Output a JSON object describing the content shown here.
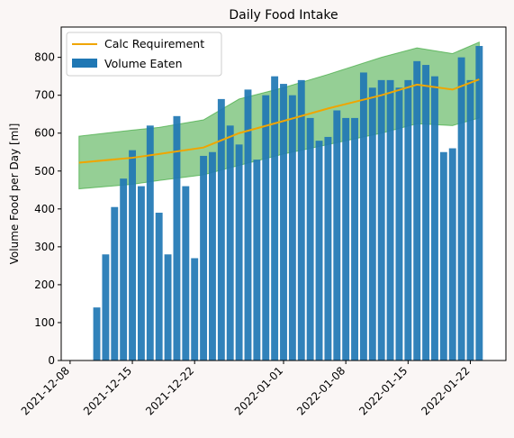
{
  "chart_data": {
    "type": "bar",
    "title": "Daily Food Intake",
    "xlabel": "",
    "ylabel": "Volume Food per Day [ml]",
    "ylim": [
      0,
      880
    ],
    "xlim": [
      "2021-12-07",
      "2022-01-26"
    ],
    "yticks": [
      0,
      100,
      200,
      300,
      400,
      500,
      600,
      700,
      800
    ],
    "xticks": [
      "2021-12-08",
      "2021-12-15",
      "2021-12-22",
      "2022-01-01",
      "2022-01-08",
      "2022-01-15",
      "2022-01-22"
    ],
    "grid": false,
    "legend": "top-left",
    "colors": {
      "bars": "#1f77b4",
      "line": "#f0a500",
      "band": "#2ca02c"
    },
    "bars": {
      "name": "Volume Eaten",
      "dates": [
        "2021-12-11",
        "2021-12-12",
        "2021-12-13",
        "2021-12-14",
        "2021-12-15",
        "2021-12-16",
        "2021-12-17",
        "2021-12-18",
        "2021-12-19",
        "2021-12-20",
        "2021-12-21",
        "2021-12-22",
        "2021-12-23",
        "2021-12-24",
        "2021-12-25",
        "2021-12-26",
        "2021-12-27",
        "2021-12-28",
        "2021-12-29",
        "2021-12-30",
        "2021-12-31",
        "2022-01-01",
        "2022-01-02",
        "2022-01-03",
        "2022-01-04",
        "2022-01-05",
        "2022-01-06",
        "2022-01-07",
        "2022-01-08",
        "2022-01-09",
        "2022-01-10",
        "2022-01-11",
        "2022-01-12",
        "2022-01-13",
        "2022-01-14",
        "2022-01-15",
        "2022-01-16",
        "2022-01-17",
        "2022-01-18",
        "2022-01-19",
        "2022-01-20",
        "2022-01-21",
        "2022-01-22",
        "2022-01-23"
      ],
      "values": [
        140,
        280,
        405,
        480,
        555,
        460,
        620,
        390,
        280,
        645,
        460,
        270,
        540,
        550,
        690,
        620,
        570,
        715,
        530,
        700,
        750,
        730,
        700,
        740,
        640,
        580,
        590,
        660,
        640,
        640,
        760,
        720,
        740,
        740,
        720,
        740,
        790,
        780,
        750,
        550,
        560,
        800,
        740,
        830
      ]
    },
    "line": {
      "name": "Calc Requirement",
      "dates": [
        "2021-12-09",
        "2021-12-15",
        "2021-12-18",
        "2021-12-23",
        "2021-12-27",
        "2022-01-01",
        "2022-01-06",
        "2022-01-12",
        "2022-01-16",
        "2022-01-20",
        "2022-01-23"
      ],
      "values": [
        522,
        535,
        545,
        562,
        600,
        632,
        665,
        700,
        728,
        715,
        742
      ]
    },
    "band": {
      "dates": [
        "2021-12-09",
        "2021-12-15",
        "2021-12-18",
        "2021-12-23",
        "2021-12-27",
        "2022-01-01",
        "2022-01-06",
        "2022-01-12",
        "2022-01-16",
        "2022-01-20",
        "2022-01-23"
      ],
      "upper": [
        592,
        608,
        615,
        635,
        690,
        720,
        755,
        800,
        825,
        810,
        840
      ],
      "lower": [
        453,
        465,
        475,
        490,
        515,
        545,
        570,
        600,
        625,
        620,
        640
      ]
    }
  }
}
